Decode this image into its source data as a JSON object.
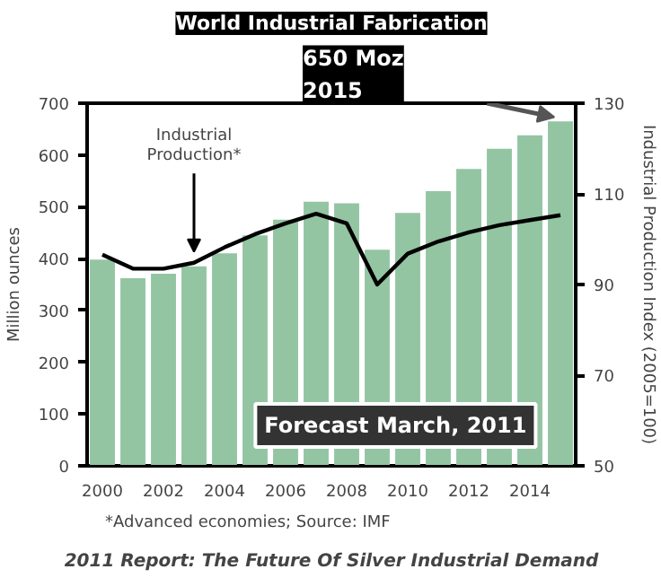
{
  "chart_data": {
    "type": "bar",
    "title": "World Industrial Fabrication",
    "ylabel": "Million ounces",
    "y2label": "Industrial Production Index (2005=100)",
    "x": [
      2000,
      2001,
      2002,
      2003,
      2004,
      2005,
      2006,
      2007,
      2008,
      2009,
      2010,
      2011,
      2012,
      2013,
      2014,
      2015
    ],
    "series": [
      {
        "color": "#93c5a3",
        "values": [
          398,
          362,
          371,
          385,
          410,
          445,
          475,
          510,
          507,
          417,
          488,
          530,
          573,
          612,
          638,
          665
        ]
      },
      {
        "type": "line",
        "color": "#000000",
        "axis": "y2",
        "values": [
          96.6,
          93.5,
          93.5,
          94.8,
          98.2,
          101.1,
          103.5,
          105.6,
          103.5,
          90,
          96.8,
          99.5,
          101.5,
          103.1,
          104.2,
          105.3
        ]
      }
    ],
    "xlim": [
      1999.5,
      2015.5
    ],
    "xticks": [
      2000,
      2002,
      2004,
      2006,
      2008,
      2010,
      2012,
      2014
    ],
    "ylim": [
      0,
      700
    ],
    "yticks": [
      0,
      100,
      200,
      300,
      400,
      500,
      600,
      700
    ],
    "y2lim": [
      50,
      130
    ],
    "y2ticks": [
      50,
      70,
      90,
      110,
      130
    ],
    "grid": false,
    "annotations": [
      "Industrial\nProduction*",
      "650 Moz\n2015",
      "Forecast March, 2011",
      "*Advanced economies; Source: IMF",
      "2011 Report: The Future Of Silver Industrial Demand"
    ]
  }
}
